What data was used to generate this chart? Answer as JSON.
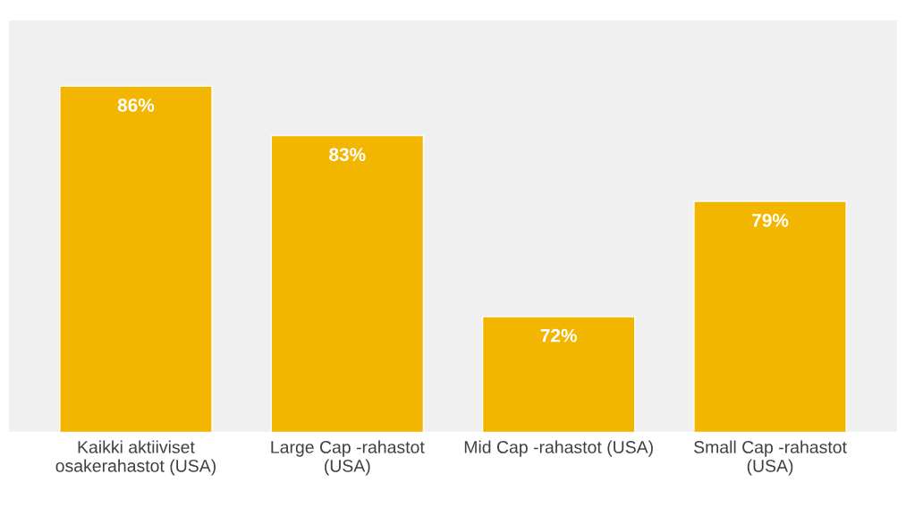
{
  "chart_data": {
    "type": "bar",
    "categories": [
      "Kaikki aktiiviset\nosakerahastot (USA)",
      "Large Cap -rahastot\n(USA)",
      "Mid Cap -rahastot (USA)",
      "Small Cap -rahastot\n(USA)"
    ],
    "values": [
      86,
      83,
      72,
      79
    ],
    "value_labels": [
      "86%",
      "83%",
      "72%",
      "79%"
    ],
    "color": "#f2b600",
    "ylim": [
      65,
      90
    ],
    "tick_labels": "x",
    "grid": false,
    "legend": false
  }
}
